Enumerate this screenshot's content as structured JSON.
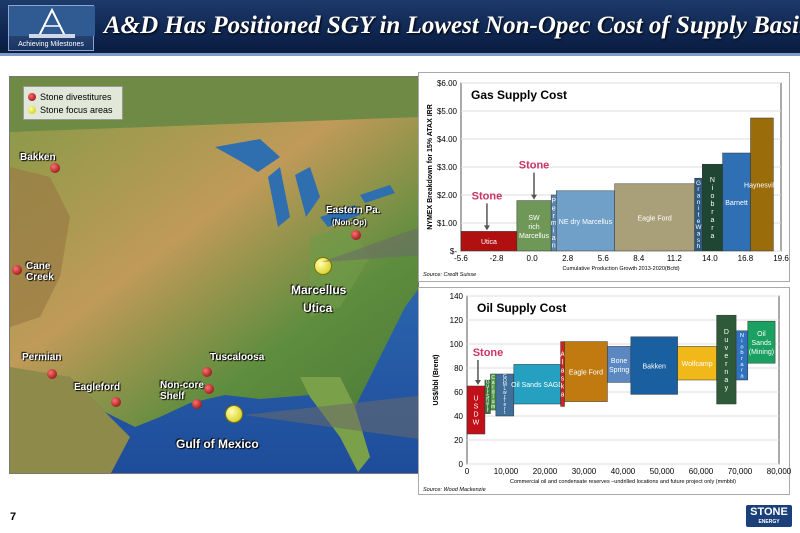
{
  "header": {
    "title": "A&D Has Positioned SGY in Lowest Non-Opec Cost of  Supply Basins",
    "logo_caption": "Achieving Milestones"
  },
  "map": {
    "legend": [
      "Stone divestitures",
      "Stone focus areas"
    ],
    "labels": {
      "bakken": "Bakken",
      "eastern_pa": "Eastern Pa.",
      "eastern_pa_sub": "(Non-Op)",
      "cane_creek": "Cane\nCreek",
      "marcellus": "Marcellus",
      "utica": "Utica",
      "permian": "Permian",
      "tuscaloosa": "Tuscaloosa",
      "eagleford": "Eagleford",
      "noncore": "Non-core\nShelf",
      "gulf": "Gulf of Mexico"
    }
  },
  "footer": {
    "page_number": "7",
    "logo_main": "STONE",
    "logo_sub": "ENERGY"
  },
  "chart_data": [
    {
      "type": "bar",
      "title": "Gas Supply Cost",
      "ylabel": "NYMEX Breakdown for 15% ATAX IRR",
      "xlabel": "Cumulative Production Growth 2013-2020(Bcfd)",
      "source": "Source: Credit Suisse",
      "y_ticks": [
        "$-",
        "$1.00",
        "$2.00",
        "$3.00",
        "$4.00",
        "$5.00",
        "$6.00"
      ],
      "x_ticks": [
        "-5.6",
        "-2.8",
        "0.0",
        "2.8",
        "5.6",
        "8.4",
        "11.2",
        "14.0",
        "16.8",
        "19.6"
      ],
      "ylim": [
        0,
        6
      ],
      "xlim": [
        -5.6,
        19.6
      ],
      "callouts": [
        "Stone",
        "Stone"
      ],
      "bars": [
        {
          "label": "Utica",
          "x0": -5.6,
          "x1": -1.2,
          "value": 0.7,
          "color": "#b01010"
        },
        {
          "label": "SW rich Marcellus",
          "x0": -1.2,
          "x1": 1.5,
          "value": 1.8,
          "color": "#6f9858"
        },
        {
          "label": "Permian",
          "x0": 1.5,
          "x1": 1.9,
          "value": 2.0,
          "color": "#5b86b0"
        },
        {
          "label": "NE dry Marcellus",
          "x0": 1.9,
          "x1": 6.5,
          "value": 2.15,
          "color": "#70a0c8"
        },
        {
          "label": "Eagle Ford",
          "x0": 6.5,
          "x1": 12.8,
          "value": 2.4,
          "color": "#a9a079"
        },
        {
          "label": "Granite Wash",
          "x0": 12.8,
          "x1": 13.4,
          "value": 2.6,
          "color": "#2e5a82"
        },
        {
          "label": "Niobrara",
          "x0": 13.4,
          "x1": 15.0,
          "value": 3.1,
          "color": "#1e4632"
        },
        {
          "label": "Barnett",
          "x0": 15.0,
          "x1": 17.2,
          "value": 3.5,
          "color": "#2f70b5"
        },
        {
          "label": "Haynesville",
          "x0": 17.2,
          "x1": 19.0,
          "value": 4.75,
          "color": "#9a6d0a"
        }
      ]
    },
    {
      "type": "bar",
      "title": "Oil Supply Cost",
      "ylabel": "US$/bbl (Brent)",
      "xlabel": "Commercial oil and condensate reserves –undrilled locations and future project only (mmbbl)",
      "source": "Source: Wood Mackenzie",
      "y_ticks": [
        "0",
        "20",
        "40",
        "60",
        "80",
        "100",
        "120",
        "140"
      ],
      "x_ticks": [
        "0",
        "10,000",
        "20,000",
        "30,000",
        "40,000",
        "50,000",
        "60,000",
        "70,000",
        "80,000"
      ],
      "ylim": [
        0,
        140
      ],
      "xlim": [
        0,
        80000
      ],
      "callouts": [
        "Stone"
      ],
      "bars": [
        {
          "label": "US DW",
          "x0": 0,
          "x1": 4600,
          "low": 25,
          "high": 65,
          "color": "#c2101a"
        },
        {
          "label": "Gulf Shelf",
          "x0": 4600,
          "x1": 6000,
          "low": 42,
          "high": 70,
          "color": "#3c7a3c"
        },
        {
          "label": "Cardium",
          "x0": 6000,
          "x1": 7400,
          "low": 45,
          "high": 75,
          "color": "#56a050"
        },
        {
          "label": "GOM Lwr Tert",
          "x0": 7400,
          "x1": 12000,
          "low": 40,
          "high": 75,
          "color": "#3f6f9a"
        },
        {
          "label": "Oil Sands SAGD",
          "x0": 12000,
          "x1": 24000,
          "low": 50,
          "high": 83,
          "color": "#25a0c0"
        },
        {
          "label": "Alaska",
          "x0": 24000,
          "x1": 25000,
          "low": 48,
          "high": 102,
          "color": "#d02020"
        },
        {
          "label": "Eagle Ford",
          "x0": 25000,
          "x1": 36000,
          "low": 52,
          "high": 102,
          "color": "#c07a10"
        },
        {
          "label": "Bone Spring",
          "x0": 36000,
          "x1": 42000,
          "low": 68,
          "high": 98,
          "color": "#5b88c0"
        },
        {
          "label": "Bakken",
          "x0": 42000,
          "x1": 54000,
          "low": 58,
          "high": 106,
          "color": "#1a5fa0"
        },
        {
          "label": "Wolfcamp",
          "x0": 54000,
          "x1": 64000,
          "low": 70,
          "high": 98,
          "color": "#f0b818"
        },
        {
          "label": "Duvernay",
          "x0": 64000,
          "x1": 69000,
          "low": 50,
          "high": 124,
          "color": "#2e5a3a"
        },
        {
          "label": "Niobrara",
          "x0": 69000,
          "x1": 72000,
          "low": 70,
          "high": 111,
          "color": "#2f72c0"
        },
        {
          "label": "Oil Sands (Mining)",
          "x0": 72000,
          "x1": 79000,
          "low": 84,
          "high": 119,
          "color": "#1aa060"
        }
      ]
    }
  ]
}
